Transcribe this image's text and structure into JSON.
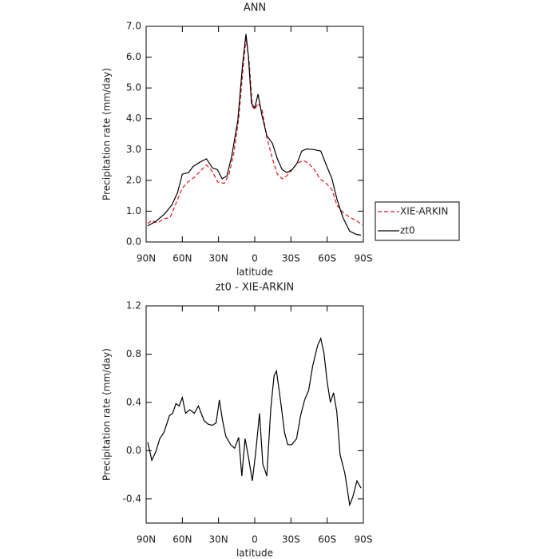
{
  "chart_data": [
    {
      "type": "line",
      "title": "ANN",
      "x_label": "latitude",
      "y_label": "Precipitation rate (mm/day)",
      "xlim": [
        90,
        -90
      ],
      "xticks": [
        {
          "value": 90,
          "label": "90N"
        },
        {
          "value": 60,
          "label": "60N"
        },
        {
          "value": 30,
          "label": "30N"
        },
        0,
        {
          "value": -30,
          "label": "30S"
        },
        {
          "value": -60,
          "label": "60S"
        },
        {
          "value": -90,
          "label": "90S"
        }
      ],
      "ylim": [
        0,
        7
      ],
      "yticks": [
        {
          "value": 0,
          "label": "0.0"
        },
        {
          "value": 1,
          "label": "1.0"
        },
        {
          "value": 2,
          "label": "2.0"
        },
        {
          "value": 3,
          "label": "3.0"
        },
        {
          "value": 4,
          "label": "4.0"
        },
        {
          "value": 5,
          "label": "5.0"
        },
        {
          "value": 6,
          "label": "6.0"
        },
        {
          "value": 7,
          "label": "7.0"
        }
      ],
      "legend": "right",
      "series": [
        {
          "name": "XIE-ARKIN",
          "color": "#e8121b",
          "style": "dashed",
          "x": [
            88.7,
            85.3,
            80.7,
            75,
            70,
            65.3,
            60,
            55.3,
            50,
            45.3,
            40,
            35.3,
            30.7,
            25.3,
            21.3,
            17.3,
            13.3,
            10,
            7.3,
            4.7,
            2,
            0,
            -2.7,
            -6,
            -10,
            -14.7,
            -18.7,
            -22.7,
            -26.7,
            -31,
            -35.3,
            -40,
            -44.7,
            -49.3,
            -54,
            -59.3,
            -64,
            -68,
            -73.3,
            -78.7,
            -84,
            -89.3
          ],
          "values": [
            0.6,
            0.7,
            0.62,
            0.75,
            0.8,
            1.25,
            1.75,
            1.95,
            2.1,
            2.3,
            2.5,
            2.3,
            1.95,
            1.9,
            2.2,
            2.9,
            4.0,
            5.5,
            6.6,
            5.9,
            4.4,
            4.3,
            4.5,
            4.3,
            3.4,
            2.7,
            2.2,
            2.05,
            2.15,
            2.35,
            2.55,
            2.65,
            2.55,
            2.35,
            2.05,
            1.9,
            1.7,
            1.2,
            0.95,
            0.8,
            0.7,
            0.55
          ]
        },
        {
          "name": "zt0",
          "color": "#000000",
          "style": "solid",
          "x": [
            88.7,
            82,
            75,
            68.7,
            64,
            60,
            55,
            51,
            45,
            40,
            35,
            31,
            27,
            23,
            19,
            14,
            10,
            7.3,
            5.3,
            2.7,
            0,
            -2.7,
            -6,
            -10,
            -14.7,
            -18.7,
            -22.7,
            -26.7,
            -31,
            -35,
            -39,
            -43,
            -49,
            -54.7,
            -59.3,
            -64,
            -68,
            -73,
            -78.7,
            -84,
            -88
          ],
          "values": [
            0.52,
            0.67,
            0.9,
            1.2,
            1.6,
            2.2,
            2.25,
            2.45,
            2.6,
            2.7,
            2.4,
            2.35,
            2.05,
            2.15,
            2.8,
            3.95,
            5.8,
            6.75,
            6.05,
            4.5,
            4.35,
            4.8,
            4.1,
            3.45,
            3.2,
            2.7,
            2.35,
            2.25,
            2.35,
            2.55,
            2.95,
            3.02,
            3.0,
            2.95,
            2.5,
            2.05,
            1.4,
            0.8,
            0.35,
            0.25,
            0.22
          ]
        }
      ]
    },
    {
      "type": "line",
      "title": "zt0 - XIE-ARKIN",
      "x_label": "latitude",
      "y_label": "Precipitation rate (mm/day)",
      "xlim": [
        90,
        -90
      ],
      "xticks": [
        {
          "value": 90,
          "label": "90N"
        },
        {
          "value": 60,
          "label": "60N"
        },
        {
          "value": 30,
          "label": "30N"
        },
        0,
        {
          "value": -30,
          "label": "30S"
        },
        {
          "value": -60,
          "label": "60S"
        },
        {
          "value": -90,
          "label": "90S"
        }
      ],
      "ylim": [
        -0.6,
        1.2
      ],
      "yticks": [
        -0.4,
        {
          "value": 0,
          "label": "0.0"
        },
        0.4,
        0.8,
        1.2
      ],
      "color": "#000000",
      "x": [
        88.7,
        85.3,
        82,
        78.7,
        75.3,
        70.7,
        68,
        65.3,
        62.7,
        60,
        57.3,
        54,
        50,
        46.7,
        42,
        38.7,
        35.3,
        32,
        29.3,
        26.7,
        24,
        20,
        16.7,
        13.3,
        10.7,
        8,
        5.3,
        2,
        -0.7,
        -4,
        -6.7,
        -10,
        -13.3,
        -16,
        -18,
        -21.3,
        -24.7,
        -27.3,
        -30.7,
        -34.7,
        -38,
        -41.3,
        -44.7,
        -48,
        -52,
        -54.7,
        -57.3,
        -60,
        -62.7,
        -65.3,
        -68,
        -70.7,
        -74.7,
        -78.7,
        -81.3,
        -84.7,
        -88
      ],
      "values": [
        0.07,
        -0.08,
        -0.01,
        0.1,
        0.15,
        0.29,
        0.31,
        0.39,
        0.37,
        0.44,
        0.31,
        0.34,
        0.31,
        0.37,
        0.25,
        0.22,
        0.21,
        0.23,
        0.42,
        0.25,
        0.12,
        0.05,
        0.02,
        0.11,
        -0.21,
        0.1,
        -0.05,
        -0.25,
        -0.02,
        0.31,
        -0.11,
        -0.21,
        0.35,
        0.62,
        0.66,
        0.42,
        0.15,
        0.05,
        0.05,
        0.1,
        0.29,
        0.42,
        0.5,
        0.7,
        0.87,
        0.93,
        0.81,
        0.57,
        0.4,
        0.48,
        0.32,
        -0.03,
        -0.19,
        -0.45,
        -0.38,
        -0.25,
        -0.31
      ]
    }
  ]
}
